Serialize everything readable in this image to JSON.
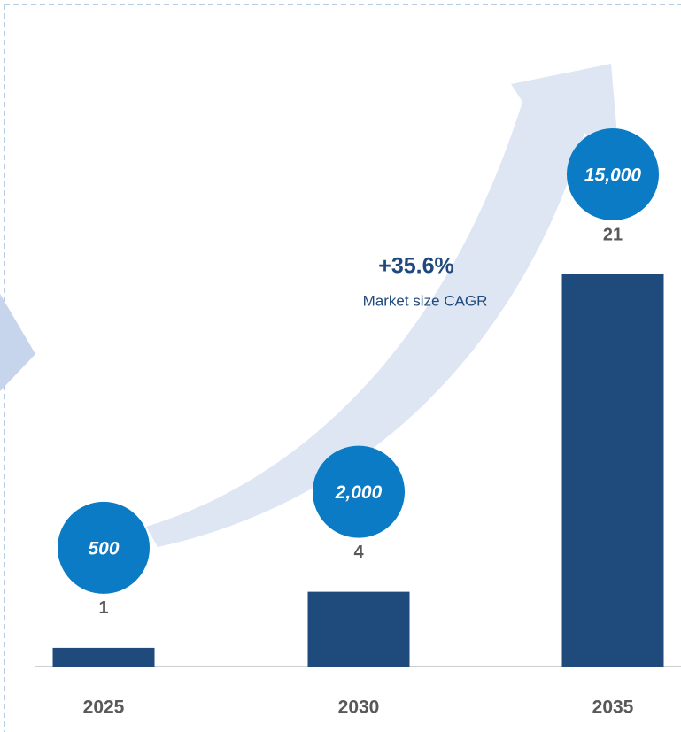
{
  "chart_data": {
    "type": "bar",
    "categories": [
      "2025",
      "2030",
      "2035"
    ],
    "values": [
      1,
      4,
      21
    ],
    "color": "#1f4a7c",
    "ylim": [
      0,
      21
    ],
    "markers": {
      "values": [
        500,
        2000,
        15000
      ],
      "value_labels": [
        "500",
        "2,000",
        "15,000"
      ],
      "color": "#0a7bc4"
    },
    "annotations": [
      "+35.6%",
      "Market size CAGR"
    ]
  }
}
